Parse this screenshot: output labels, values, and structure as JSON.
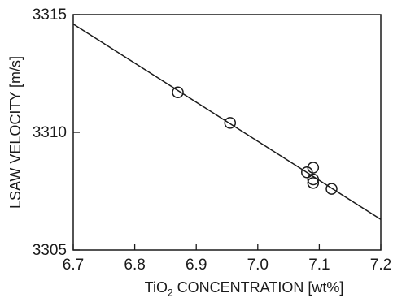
{
  "chart_data": {
    "type": "scatter",
    "title": "",
    "xlabel": "TiO2 CONCENTRATION [wt%]",
    "xlabel_parts": {
      "pre": "TiO",
      "sub": "2",
      "post": " CONCENTRATION [wt%]"
    },
    "ylabel": "LSAW VELOCITY [m/s]",
    "xlim": [
      6.7,
      7.2
    ],
    "ylim": [
      3305,
      3315
    ],
    "x_ticks": [
      "6.7",
      "6.8",
      "6.9",
      "7.0",
      "7.1",
      "7.2"
    ],
    "y_ticks": [
      "3305",
      "3310",
      "3315"
    ],
    "grid": false,
    "points": [
      {
        "x": 6.87,
        "y": 3311.7
      },
      {
        "x": 6.955,
        "y": 3310.4
      },
      {
        "x": 7.08,
        "y": 3308.3
      },
      {
        "x": 7.09,
        "y": 3308.5
      },
      {
        "x": 7.09,
        "y": 3308.0
      },
      {
        "x": 7.09,
        "y": 3307.85
      },
      {
        "x": 7.12,
        "y": 3307.6
      }
    ],
    "fit_line": {
      "x": [
        6.7,
        7.2
      ],
      "y": [
        3314.6,
        3306.3
      ]
    }
  }
}
